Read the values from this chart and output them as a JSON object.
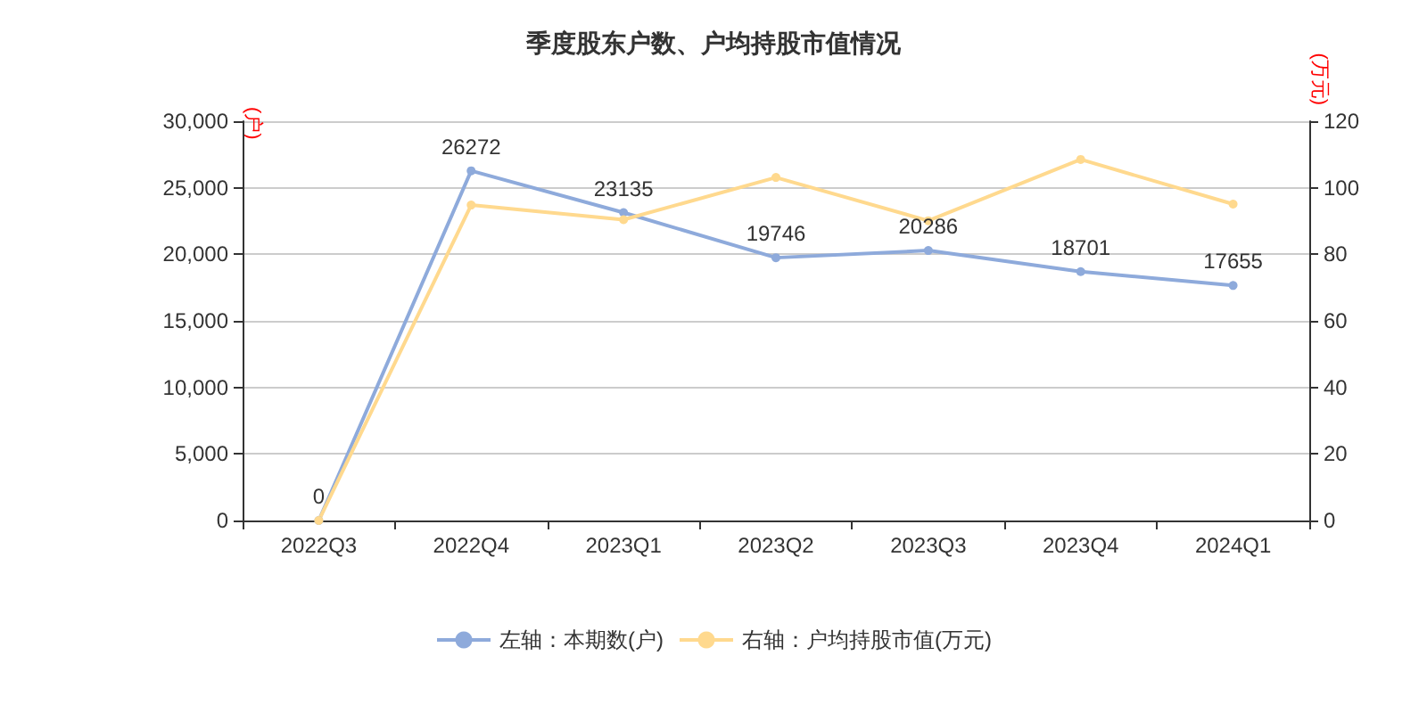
{
  "chart_data": {
    "type": "line",
    "title": "季度股东户数、户均持股市值情况",
    "ylabel": "(户)",
    "y2label": "(万元)",
    "categories": [
      "2022Q3",
      "2022Q4",
      "2023Q1",
      "2023Q2",
      "2023Q3",
      "2023Q4",
      "2024Q1"
    ],
    "series": [
      {
        "name": "左轴：本期数(户)",
        "color": "#8eaadb",
        "values": [
          0,
          26272,
          23135,
          19746,
          20286,
          18701,
          17655
        ],
        "data_labels": true
      },
      {
        "name": "右轴：户均持股市值(万元)",
        "color": "#ffd98e",
        "axis": "y2",
        "values": [
          0,
          94.8,
          90.4,
          103.1,
          90.1,
          108.5,
          95.1
        ]
      }
    ],
    "ylim": [
      0,
      30000
    ],
    "yticks": [
      0,
      {
        "value": 5000,
        "label": "5,000"
      },
      {
        "value": 10000,
        "label": "10,000"
      },
      {
        "value": 15000,
        "label": "15,000"
      },
      {
        "value": 20000,
        "label": "20,000"
      },
      {
        "value": 25000,
        "label": "25,000"
      },
      {
        "value": 30000,
        "label": "30,000"
      }
    ],
    "y2lim": [
      0,
      120
    ],
    "y2ticks": [
      0,
      20,
      40,
      60,
      80,
      100,
      120
    ],
    "grid": "y",
    "legend": "bottom",
    "marker": "circle",
    "line_style": "solid"
  }
}
